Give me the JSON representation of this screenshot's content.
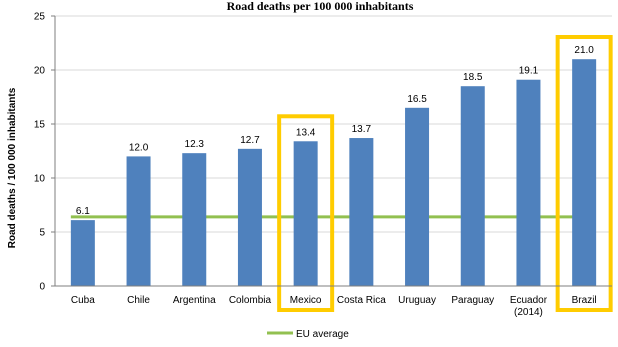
{
  "chart_data": {
    "type": "bar",
    "title": "Road deaths per 100 000 inhabitants",
    "ylabel": "Road deaths / 100 000 inhabitants",
    "xlabel": "",
    "ylim": [
      0,
      25
    ],
    "yticks": [
      0,
      5,
      10,
      15,
      20,
      25
    ],
    "categories": [
      "Cuba",
      "Chile",
      "Argentina",
      "Colombia",
      "Mexico",
      "Costa Rica",
      "Uruguay",
      "Paraguay",
      "Ecuador (2014)",
      "Brazil"
    ],
    "values": [
      6.1,
      12.0,
      12.3,
      12.7,
      13.4,
      13.7,
      16.5,
      18.5,
      19.1,
      21.0
    ],
    "data_labels": [
      "6.1",
      "12.0",
      "12.3",
      "12.7",
      "13.4",
      "13.7",
      "16.5",
      "18.5",
      "19.1",
      "21.0"
    ],
    "reference_line": {
      "name": "EU average",
      "value": 6.4,
      "color": "#92c050"
    },
    "bar_color": "#4f81bd",
    "highlighted": [
      "Mexico",
      "Brazil"
    ],
    "highlight_color": "#ffcc00",
    "grid": "horizontal",
    "legend_position": "bottom"
  }
}
